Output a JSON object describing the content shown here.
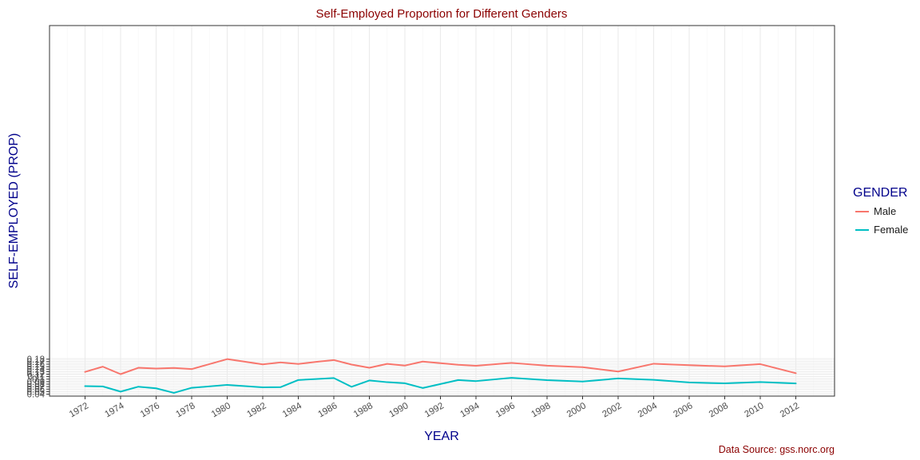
{
  "chart_data": {
    "type": "line",
    "title": "Self-Employed Proportion for Different Genders",
    "xlabel": "YEAR",
    "ylabel": "SELF-EMPLOYED (PROP)",
    "caption": "Data Source: gss.norc.org",
    "legend_title": "GENDER",
    "legend_position": "right",
    "grid": true,
    "xlim": [
      1971,
      2013
    ],
    "ylim": [
      0.04,
      0.185
    ],
    "x_ticks": [
      "1972",
      "1974",
      "1976",
      "1978",
      "1980",
      "1982",
      "1984",
      "1986",
      "1988",
      "1990",
      "1992",
      "1994",
      "1996",
      "1998",
      "2000",
      "2002",
      "2004",
      "2006",
      "2008",
      "2010",
      "2012"
    ],
    "y_ticks": [
      "0.04",
      "0.05",
      "0.06",
      "0.07",
      "0.08",
      "0.09",
      "0.1",
      "0.11",
      "0.12",
      "0.13",
      "0.14",
      "0.15",
      "0.16",
      "0.17",
      "0.18"
    ],
    "series": [
      {
        "name": "Male",
        "color": "#F8766D",
        "x": [
          1972,
          1973,
          1974,
          1975,
          1976,
          1977,
          1978,
          1980,
          1982,
          1983,
          1984,
          1985,
          1986,
          1987,
          1988,
          1989,
          1990,
          1991,
          1993,
          1994,
          1996,
          1998,
          2000,
          2002,
          2004,
          2006,
          2008,
          2010,
          2012
        ],
        "y": [
          0.129,
          0.15,
          0.12,
          0.1455,
          0.1425,
          0.1447,
          0.1403,
          0.1803,
          0.1593,
          0.167,
          0.1608,
          0.1693,
          0.1765,
          0.1585,
          0.1456,
          0.1612,
          0.1545,
          0.1703,
          0.1575,
          0.1536,
          0.165,
          0.154,
          0.148,
          0.1305,
          0.1618,
          0.1558,
          0.151,
          0.1603,
          0.1237
        ]
      },
      {
        "name": "Female",
        "color": "#00BFC4",
        "x": [
          1972,
          1973,
          1974,
          1975,
          1976,
          1977,
          1978,
          1980,
          1982,
          1983,
          1984,
          1985,
          1986,
          1987,
          1988,
          1989,
          1990,
          1991,
          1993,
          1994,
          1996,
          1998,
          2000,
          2002,
          2004,
          2006,
          2008,
          2010,
          2012
        ],
        "y": [
          0.072,
          0.0708,
          0.05,
          0.0697,
          0.0633,
          0.045,
          0.0653,
          0.077,
          0.0673,
          0.0678,
          0.0965,
          0.1005,
          0.1045,
          0.0693,
          0.0947,
          0.0878,
          0.0835,
          0.0645,
          0.0965,
          0.0922,
          0.1053,
          0.096,
          0.0905,
          0.1028,
          0.0972,
          0.0868,
          0.083,
          0.0883,
          0.0828
        ]
      }
    ]
  },
  "colors": {
    "title": "#8B0000",
    "axis_title": "#00008B",
    "legend_title": "#00008B",
    "caption": "#8B0000",
    "grid_major": "#ebebeb",
    "grid_minor": "#f5f5f5",
    "panel_border": "#333333"
  }
}
